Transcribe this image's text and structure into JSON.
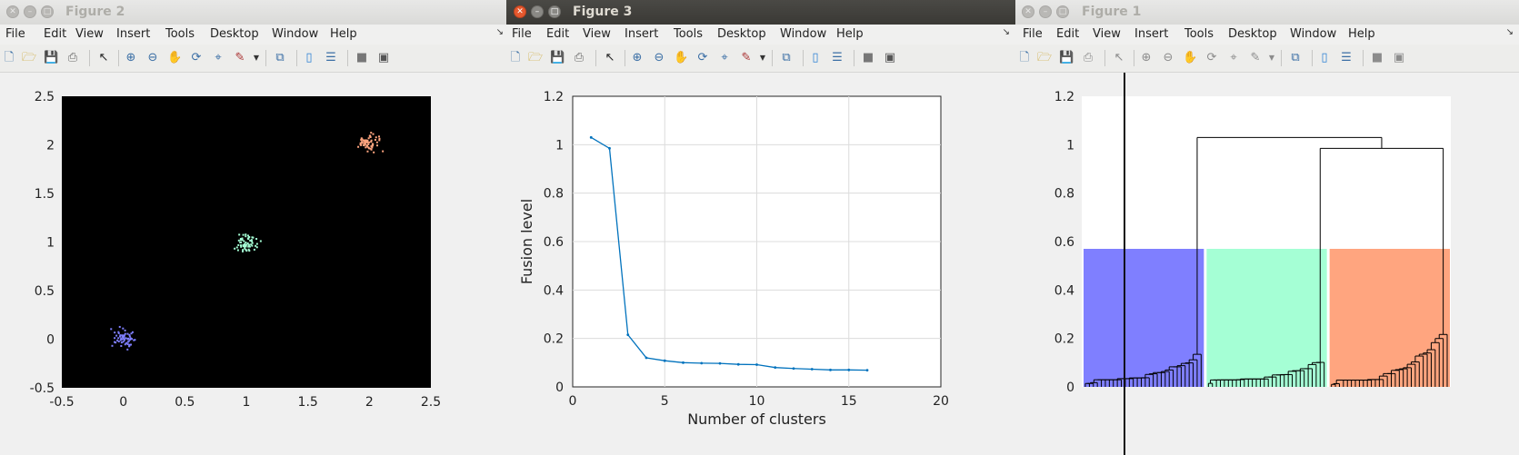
{
  "menu": [
    "File",
    "Edit",
    "View",
    "Insert",
    "Tools",
    "Desktop",
    "Window",
    "Help"
  ],
  "toolbar_icons": [
    "new-figure-icon",
    "open-file-icon",
    "save-icon",
    "print-icon",
    "pointer-icon",
    "zoom-in-icon",
    "zoom-out-icon",
    "pan-icon",
    "rotate-3d-icon",
    "data-cursor-icon",
    "brush-icon",
    "link-plot-icon",
    "colorbar-icon",
    "legend-icon",
    "hide-plot-tools-icon",
    "show-plot-tools-icon"
  ],
  "windows": {
    "figure2": {
      "title": "Figure 2"
    },
    "figure3": {
      "title": "Figure 3"
    },
    "figure1": {
      "title": "Figure 1"
    }
  },
  "colors": {
    "cluster_blue": "#7f7fff",
    "cluster_green": "#a5ffd5",
    "cluster_orange": "#ffa57f",
    "line_blue": "#0072bd",
    "scatter_bg": "#000000"
  },
  "chart_data": [
    {
      "id": "figure2",
      "type": "scatter",
      "title": "",
      "xlabel": "",
      "ylabel": "",
      "xlim": [
        -0.5,
        2.5
      ],
      "ylim": [
        -0.5,
        2.5
      ],
      "xticks": [
        "-0.5",
        "0",
        "0.5",
        "1",
        "1.5",
        "2",
        "2.5"
      ],
      "yticks": [
        "-0.5",
        "0",
        "0.5",
        "1",
        "1.5",
        "2",
        "2.5"
      ],
      "grid": false,
      "series": [
        {
          "color": "#7f7fff",
          "center": [
            0.0,
            0.02
          ],
          "spread": 0.09,
          "count": 60
        },
        {
          "color": "#a5ffd5",
          "center": [
            1.0,
            0.99
          ],
          "spread": 0.09,
          "count": 60
        },
        {
          "color": "#ffa57f",
          "center": [
            2.0,
            2.01
          ],
          "spread": 0.09,
          "count": 60
        }
      ]
    },
    {
      "id": "figure3",
      "type": "line",
      "title": "",
      "xlabel": "Number of clusters",
      "ylabel": "Fusion level",
      "xlim": [
        0,
        20
      ],
      "ylim": [
        0,
        1.2
      ],
      "xticks": [
        "0",
        "5",
        "10",
        "15",
        "20"
      ],
      "yticks": [
        "0",
        "0.2",
        "0.4",
        "0.6",
        "0.8",
        "1",
        "1.2"
      ],
      "grid": true,
      "x": [
        1,
        2,
        3,
        4,
        5,
        6,
        7,
        8,
        9,
        10,
        11,
        12,
        13,
        14,
        15,
        16
      ],
      "y": [
        1.03,
        0.985,
        0.215,
        0.12,
        0.108,
        0.1,
        0.098,
        0.097,
        0.093,
        0.092,
        0.08,
        0.076,
        0.073,
        0.07,
        0.07,
        0.069
      ]
    },
    {
      "id": "figure1",
      "type": "dendrogram",
      "title": "",
      "xlabel": "",
      "ylabel": "",
      "ylim": [
        0,
        1.2
      ],
      "yticks": [
        "0",
        "0.2",
        "0.4",
        "0.6",
        "0.8",
        "1",
        "1.2"
      ],
      "cut_level": 0.57,
      "top_merge": 1.03,
      "second_merge": 0.985,
      "clusters": [
        {
          "color": "#7f7fff",
          "max_height": 0.12
        },
        {
          "color": "#a5ffd5",
          "max_height": 0.1
        },
        {
          "color": "#ffa57f",
          "max_height": 0.22
        }
      ]
    }
  ]
}
